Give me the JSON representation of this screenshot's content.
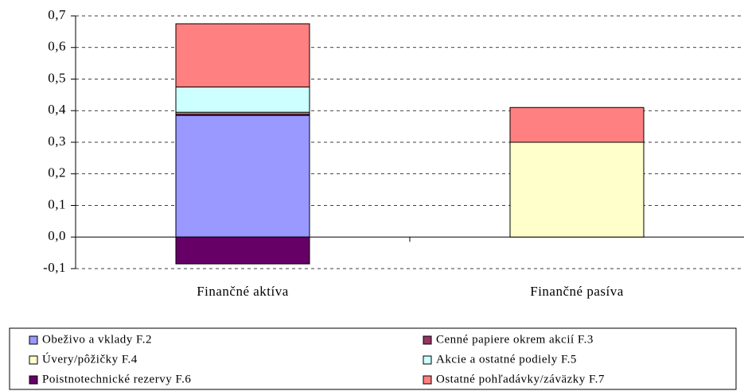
{
  "chart_data": {
    "type": "stacked_bar",
    "categories": [
      "Finančné aktíva",
      "Finančné pasíva"
    ],
    "series": [
      {
        "name": "Obeživo a vklady F.2",
        "color": "#9999ff",
        "values": [
          0.385,
          0
        ]
      },
      {
        "name": "Cenné papiere okrem akcií F.3",
        "color": "#993366",
        "values": [
          0.005,
          0
        ]
      },
      {
        "name": "Úvery/pôžičky F.4",
        "color": "#ffffcc",
        "values": [
          0.005,
          0.3
        ]
      },
      {
        "name": "Akcie a ostatné podiely F.5",
        "color": "#ccffff",
        "values": [
          0.08,
          0
        ]
      },
      {
        "name": "Poistnotechnické rezervy F.6",
        "color": "#660066",
        "values": [
          -0.085,
          0
        ]
      },
      {
        "name": "Ostatné pohľadávky/záväzky F.7",
        "color": "#ff8080",
        "values": [
          0.2,
          0.11
        ]
      }
    ],
    "ylim": [
      -0.1,
      0.7
    ],
    "yticks": [
      {
        "value": -0.1,
        "label": "-0,1"
      },
      {
        "value": 0,
        "label": "0,0"
      },
      {
        "value": 0.1,
        "label": "0,1"
      },
      {
        "value": 0.2,
        "label": "0,2"
      },
      {
        "value": 0.3,
        "label": "0,3"
      },
      {
        "value": 0.4,
        "label": "0,4"
      },
      {
        "value": 0.5,
        "label": "0,5"
      },
      {
        "value": 0.6,
        "label": "0,6"
      },
      {
        "value": 0.7,
        "label": "0,7"
      }
    ],
    "grid": true,
    "legend": "bottom"
  }
}
